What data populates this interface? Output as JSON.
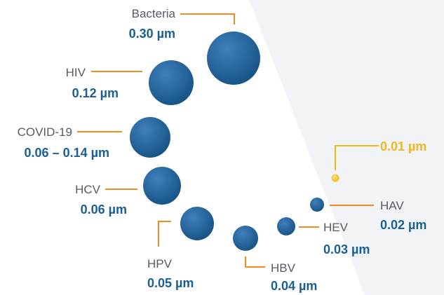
{
  "colors": {
    "particle": "#175486",
    "particle_highlight": "#3f7fbc",
    "leader_line": "#ef8c22",
    "accent": "#f0b81c",
    "size_text": "#1a5f94",
    "name_text": "#555a63",
    "background_shape": "#f2f3f6"
  },
  "items": [
    {
      "name": "Bacteria",
      "size": "0.30 µm"
    },
    {
      "name": "HIV",
      "size": "0.12 µm"
    },
    {
      "name": "COVID-19",
      "size": "0.06 – 0.14 µm"
    },
    {
      "name": "HCV",
      "size": "0.06 µm"
    },
    {
      "name": "HPV",
      "size": "0.05 µm"
    },
    {
      "name": "HBV",
      "size": "0.04 µm"
    },
    {
      "name": "HEV",
      "size": "0.03 µm"
    },
    {
      "name": "HAV",
      "size": "0.02 µm"
    },
    {
      "name": "",
      "size": "0.01 µm"
    }
  ]
}
